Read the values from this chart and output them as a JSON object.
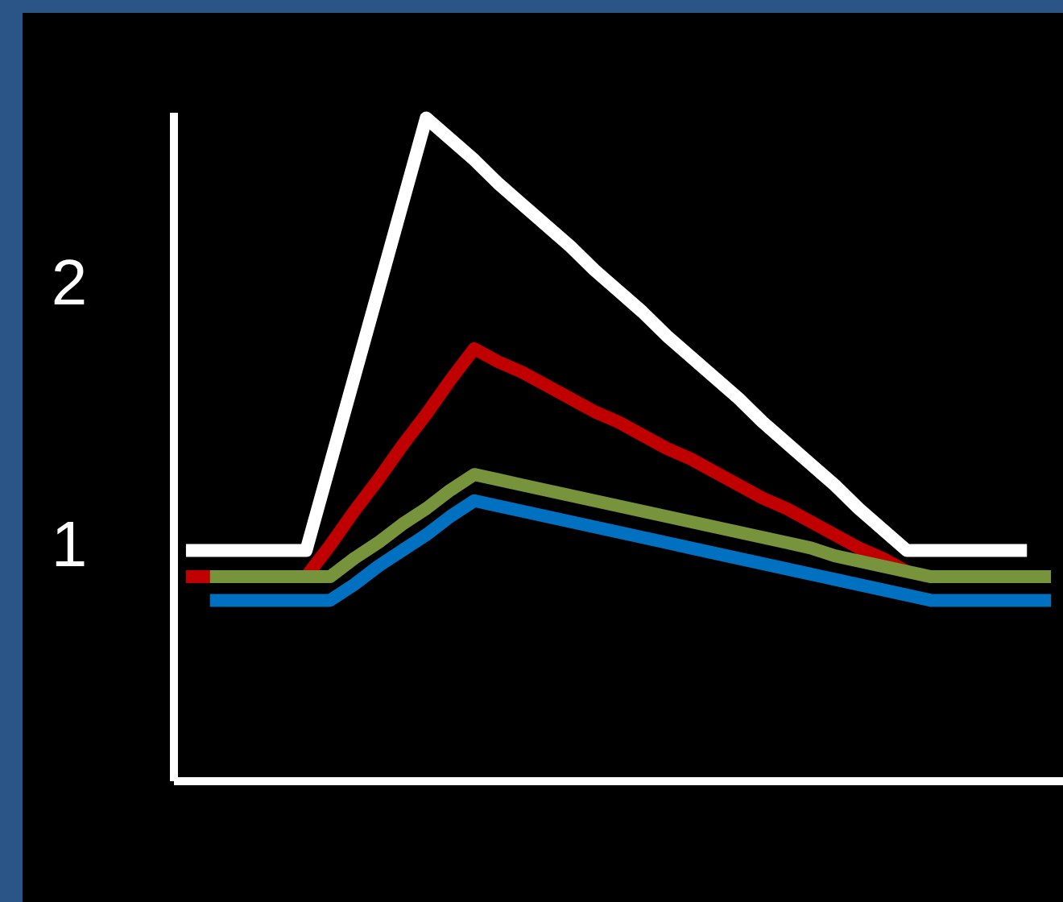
{
  "chart_data": {
    "type": "line",
    "categories": [
      null,
      null,
      null,
      null,
      null,
      null,
      null,
      null,
      null,
      null,
      null,
      null,
      null,
      null,
      null,
      null,
      null,
      null,
      null,
      null,
      null,
      null,
      null,
      null,
      null,
      null,
      null,
      null,
      null,
      null,
      null,
      null,
      null,
      null,
      null,
      null,
      null
    ],
    "ylim": [
      0.1,
      2.65
    ],
    "yticks": [
      1,
      2
    ],
    "tick_labels": "y",
    "line_style": "solid",
    "series": [
      {
        "color": "#0070c0",
        "values": [
          null,
          0.79,
          0.79,
          0.79,
          0.79,
          0.79,
          0.79,
          0.85,
          0.92,
          0.98,
          1.04,
          1.11,
          1.17,
          1.15,
          1.13,
          1.11,
          1.09,
          1.07,
          1.05,
          1.03,
          1.01,
          0.99,
          0.97,
          0.95,
          0.93,
          0.91,
          0.89,
          0.87,
          0.85,
          0.83,
          0.81,
          0.79,
          0.79,
          0.79,
          0.79,
          0.79,
          0.79
        ]
      },
      {
        "color": "#c00000",
        "values": [
          0.88,
          0.88,
          null,
          null,
          null,
          0.88,
          1.0,
          1.13,
          1.25,
          1.38,
          1.5,
          1.63,
          1.75,
          1.7,
          1.66,
          1.61,
          1.56,
          1.51,
          1.47,
          1.42,
          1.37,
          1.33,
          1.28,
          1.23,
          1.18,
          1.14,
          1.09,
          1.04,
          0.99,
          0.95,
          0.9,
          null,
          null,
          null,
          null,
          null,
          null
        ]
      },
      {
        "color": "#77933c",
        "values": [
          null,
          0.88,
          0.88,
          0.88,
          0.88,
          0.88,
          0.88,
          0.95,
          1.01,
          1.08,
          1.14,
          1.21,
          1.27,
          1.25,
          1.23,
          1.21,
          1.19,
          1.17,
          1.15,
          1.13,
          1.11,
          1.09,
          1.07,
          1.05,
          1.03,
          1.01,
          0.99,
          0.96,
          0.94,
          0.92,
          0.9,
          0.88,
          0.88,
          0.88,
          0.88,
          0.88,
          0.88
        ]
      },
      {
        "color": "#ffffff",
        "values": [
          0.98,
          0.98,
          0.98,
          0.98,
          0.98,
          0.98,
          1.31,
          1.64,
          1.97,
          2.3,
          2.63,
          2.55,
          2.47,
          2.38,
          2.3,
          2.22,
          2.14,
          2.05,
          1.97,
          1.89,
          1.8,
          1.72,
          1.64,
          1.56,
          1.47,
          1.39,
          1.31,
          1.23,
          1.14,
          1.06,
          0.98,
          0.98,
          0.98,
          0.98,
          0.98,
          0.98,
          null
        ]
      }
    ]
  }
}
